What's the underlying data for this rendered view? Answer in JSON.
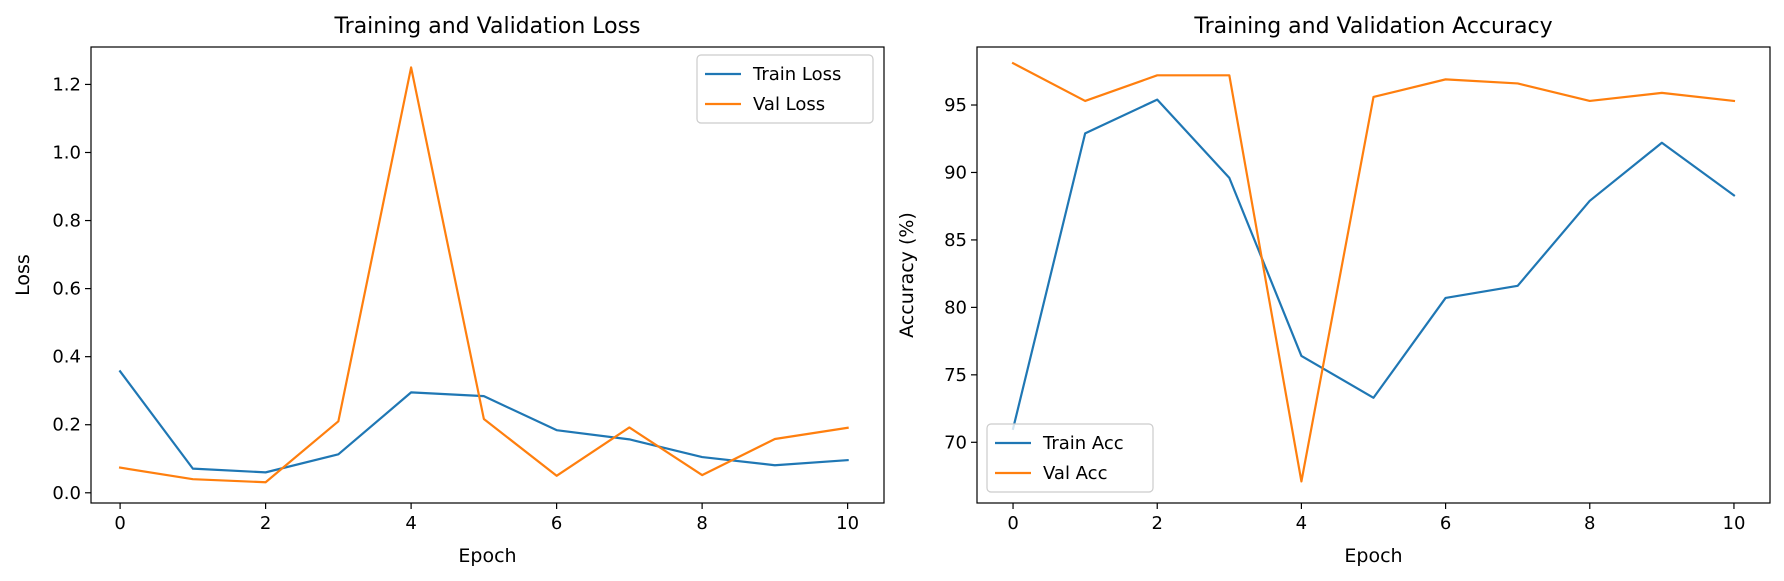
{
  "chart_data": [
    {
      "type": "line",
      "title": "Training and Validation Loss",
      "xlabel": "Epoch",
      "ylabel": "Loss",
      "xlim": [
        -0.4,
        10.5
      ],
      "ylim": [
        -0.03,
        1.31
      ],
      "xticks": [
        0,
        2,
        4,
        6,
        8,
        10
      ],
      "xtick_labels": [
        "0",
        "2",
        "4",
        "6",
        "8",
        "10"
      ],
      "yticks": [
        0.0,
        0.2,
        0.4,
        0.6,
        0.8,
        1.0,
        1.2
      ],
      "ytick_labels": [
        "0.0",
        "0.2",
        "0.4",
        "0.6",
        "0.8",
        "1.0",
        "1.2"
      ],
      "legend_position": "top-right",
      "grid": false,
      "x": [
        0,
        1,
        2,
        3,
        4,
        5,
        6,
        7,
        8,
        9,
        10
      ],
      "series": [
        {
          "name": "Train Loss",
          "color": "#1f77b4",
          "values": [
            0.357,
            0.071,
            0.06,
            0.113,
            0.295,
            0.284,
            0.184,
            0.157,
            0.105,
            0.081,
            0.096
          ]
        },
        {
          "name": "Val Loss",
          "color": "#ff7f0e",
          "values": [
            0.074,
            0.04,
            0.031,
            0.21,
            1.25,
            0.217,
            0.05,
            0.192,
            0.052,
            0.158,
            0.191
          ]
        }
      ]
    },
    {
      "type": "line",
      "title": "Training and Validation Accuracy",
      "xlabel": "Epoch",
      "ylabel": "Accuracy (%)",
      "xlim": [
        -0.5,
        10.5
      ],
      "ylim": [
        65.5,
        99.3
      ],
      "xticks": [
        0,
        2,
        4,
        6,
        8,
        10
      ],
      "xtick_labels": [
        "0",
        "2",
        "4",
        "6",
        "8",
        "10"
      ],
      "yticks": [
        70,
        75,
        80,
        85,
        90,
        95
      ],
      "ytick_labels": [
        "70",
        "75",
        "80",
        "85",
        "90",
        "95"
      ],
      "legend_position": "bottom-left",
      "grid": false,
      "x": [
        0,
        1,
        2,
        3,
        4,
        5,
        6,
        7,
        8,
        9,
        10
      ],
      "series": [
        {
          "name": "Train Acc",
          "color": "#1f77b4",
          "values": [
            71.0,
            92.9,
            95.4,
            89.6,
            76.4,
            73.3,
            80.7,
            81.6,
            87.9,
            92.2,
            88.3
          ]
        },
        {
          "name": "Val Acc",
          "color": "#ff7f0e",
          "values": [
            98.1,
            95.3,
            97.2,
            97.2,
            67.1,
            95.6,
            96.9,
            96.6,
            95.3,
            95.9,
            95.3
          ]
        }
      ]
    }
  ]
}
